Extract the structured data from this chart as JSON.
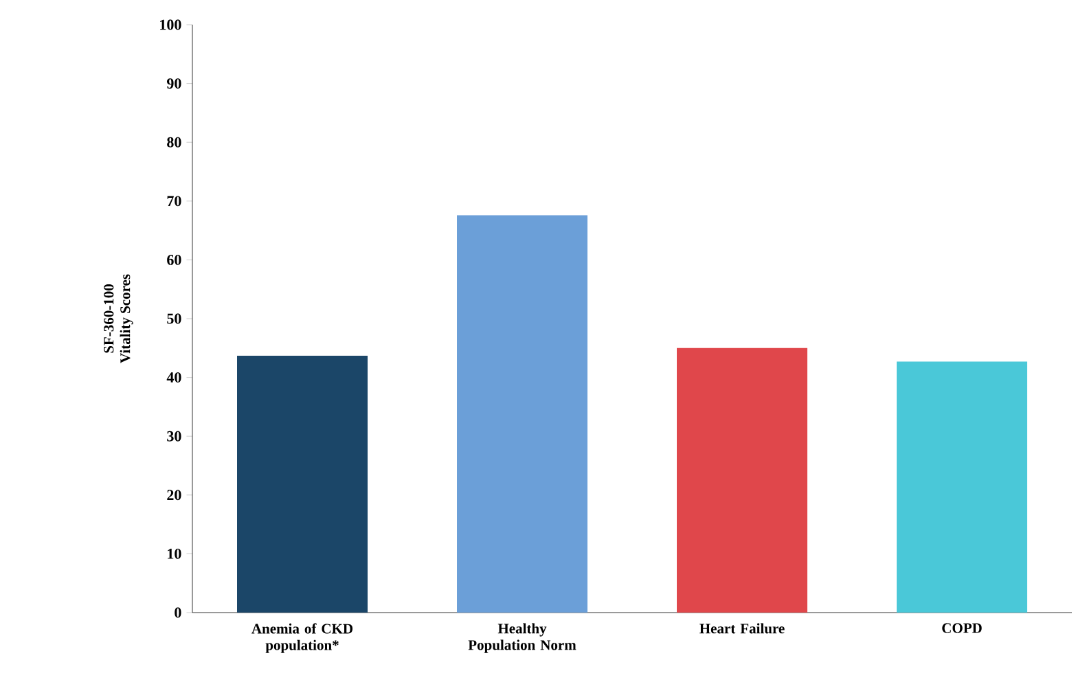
{
  "chart_data": {
    "type": "bar",
    "ylabel": "SF-360-100\nVitality Scores",
    "categories": [
      "Anemia of CKD population*",
      "Healthy Population Norm",
      "Heart Failure",
      "COPD"
    ],
    "values": [
      43.7,
      67.6,
      45.0,
      42.7
    ],
    "colors": [
      "#1b4668",
      "#6b9fd8",
      "#e0474b",
      "#4ac8d8"
    ],
    "ylim": [
      0,
      100
    ],
    "yticks": [
      0,
      10,
      20,
      30,
      40,
      50,
      60,
      70,
      80,
      90,
      100
    ],
    "grid": false
  }
}
